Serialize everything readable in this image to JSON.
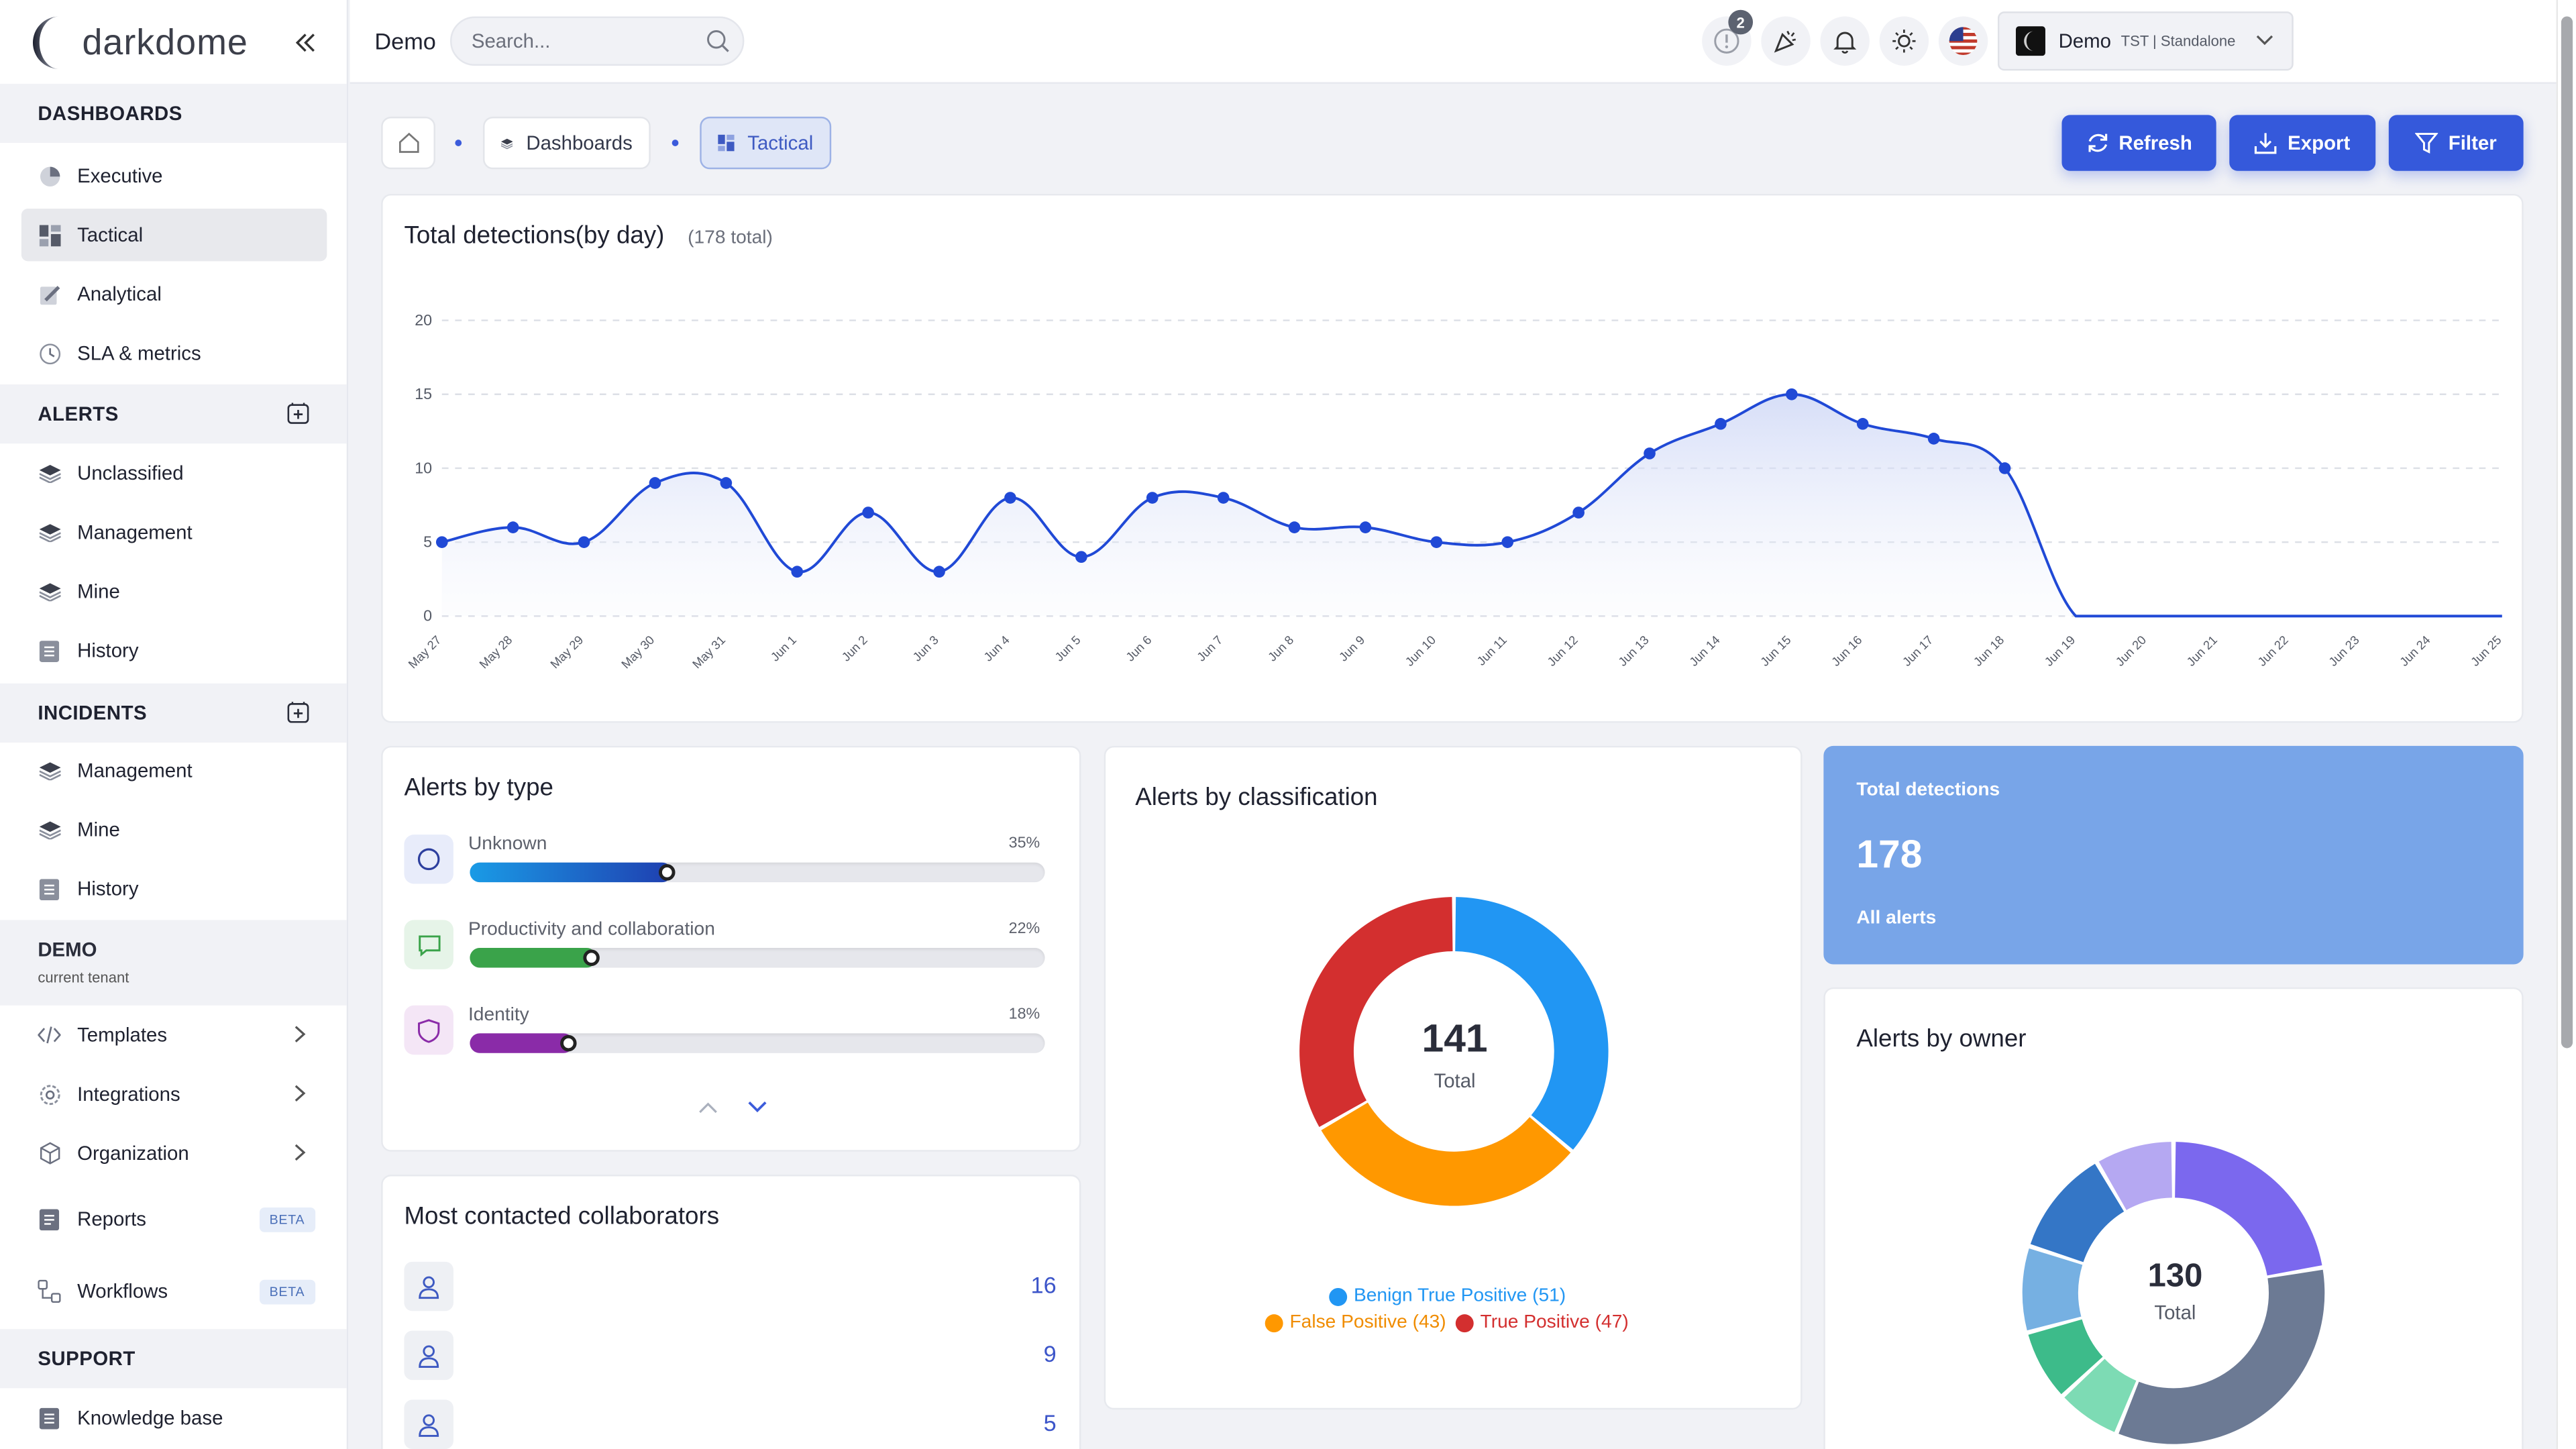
{
  "app": {
    "logo_text": "darkdome",
    "page_title": "Demo"
  },
  "search": {
    "placeholder": "Search..."
  },
  "topbar": {
    "alerts_badge": "2",
    "tenant_name": "Demo",
    "tenant_sub": "TST | Standalone"
  },
  "sidebar": {
    "dashboards_header": "DASHBOARDS",
    "dashboards": [
      {
        "label": "Executive"
      },
      {
        "label": "Tactical"
      },
      {
        "label": "Analytical"
      },
      {
        "label": "SLA & metrics"
      }
    ],
    "alerts_header": "ALERTS",
    "alerts": [
      {
        "label": "Unclassified"
      },
      {
        "label": "Management"
      },
      {
        "label": "Mine"
      },
      {
        "label": "History"
      }
    ],
    "incidents_header": "INCIDENTS",
    "incidents": [
      {
        "label": "Management"
      },
      {
        "label": "Mine"
      },
      {
        "label": "History"
      }
    ],
    "tenant": {
      "name": "DEMO",
      "sub": "current tenant"
    },
    "tools": [
      {
        "label": "Templates"
      },
      {
        "label": "Integrations"
      },
      {
        "label": "Organization"
      },
      {
        "label": "Reports",
        "badge": "BETA"
      },
      {
        "label": "Workflows",
        "badge": "BETA"
      }
    ],
    "support_header": "SUPPORT",
    "support": [
      {
        "label": "Knowledge base"
      }
    ]
  },
  "breadcrumb": {
    "dashboards": "Dashboards",
    "tactical": "Tactical"
  },
  "actions": {
    "refresh": "Refresh",
    "export": "Export",
    "filter": "Filter"
  },
  "detections_card": {
    "title": "Total detections(by day)",
    "total_note": "(178 total)"
  },
  "alerts_by_type": {
    "title": "Alerts by type",
    "rows": [
      {
        "label": "Unknown",
        "pct_label": "35%",
        "value": 0.35,
        "color": "#1f3fb0"
      },
      {
        "label": "Productivity and collaboration",
        "pct_label": "22%",
        "value": 0.22,
        "color": "#3aa34a"
      },
      {
        "label": "Identity",
        "pct_label": "18%",
        "value": 0.18,
        "color": "#8a2ba8"
      }
    ]
  },
  "collaborators": {
    "title": "Most contacted collaborators",
    "counts": [
      "16",
      "9",
      "5"
    ]
  },
  "classification": {
    "title": "Alerts by classification",
    "total": "141",
    "total_label": "Total",
    "legend": [
      "Benign True Positive (51)",
      "False Positive (43)",
      "True Positive (47)"
    ]
  },
  "total_detections": {
    "label": "Total detections",
    "value": "178",
    "sub": "All alerts"
  },
  "owner": {
    "title": "Alerts by owner",
    "total": "130",
    "total_label": "Total"
  },
  "chart_data": [
    {
      "type": "line",
      "title": "Total detections(by day)",
      "x": [
        "May 27",
        "May 28",
        "May 29",
        "May 30",
        "May 31",
        "Jun 1",
        "Jun 2",
        "Jun 3",
        "Jun 4",
        "Jun 5",
        "Jun 6",
        "Jun 7",
        "Jun 8",
        "Jun 9",
        "Jun 10",
        "Jun 11",
        "Jun 12",
        "Jun 13",
        "Jun 14",
        "Jun 15",
        "Jun 16",
        "Jun 17",
        "Jun 18",
        "Jun 19",
        "Jun 20",
        "Jun 21",
        "Jun 22",
        "Jun 23",
        "Jun 24",
        "Jun 25"
      ],
      "values": [
        5,
        6,
        5,
        9,
        9,
        3,
        7,
        3,
        8,
        4,
        8,
        8,
        6,
        6,
        5,
        5,
        7,
        11,
        13,
        15,
        13,
        12,
        10,
        0,
        0,
        0,
        0,
        0,
        0,
        0
      ],
      "marker_count": 23,
      "ylim": [
        0,
        20
      ],
      "yticks": [
        0,
        5,
        10,
        15,
        20
      ],
      "grid": true,
      "color": "#2049d6"
    },
    {
      "type": "pie",
      "title": "Alerts by classification",
      "categories": [
        "Benign True Positive",
        "False Positive",
        "True Positive"
      ],
      "values": [
        51,
        43,
        47
      ],
      "colors": [
        "#2196f3",
        "#ff9800",
        "#d32f2f"
      ],
      "legend": "bottom"
    },
    {
      "type": "pie",
      "title": "Alerts by owner",
      "values": [
        29,
        44,
        9,
        10,
        12,
        15,
        11
      ],
      "colors": [
        "#7b68ee",
        "#6c7a94",
        "#7ddbb4",
        "#3dbb8a",
        "#76b0e2",
        "#3476c6",
        "#b5a8f2"
      ]
    }
  ]
}
